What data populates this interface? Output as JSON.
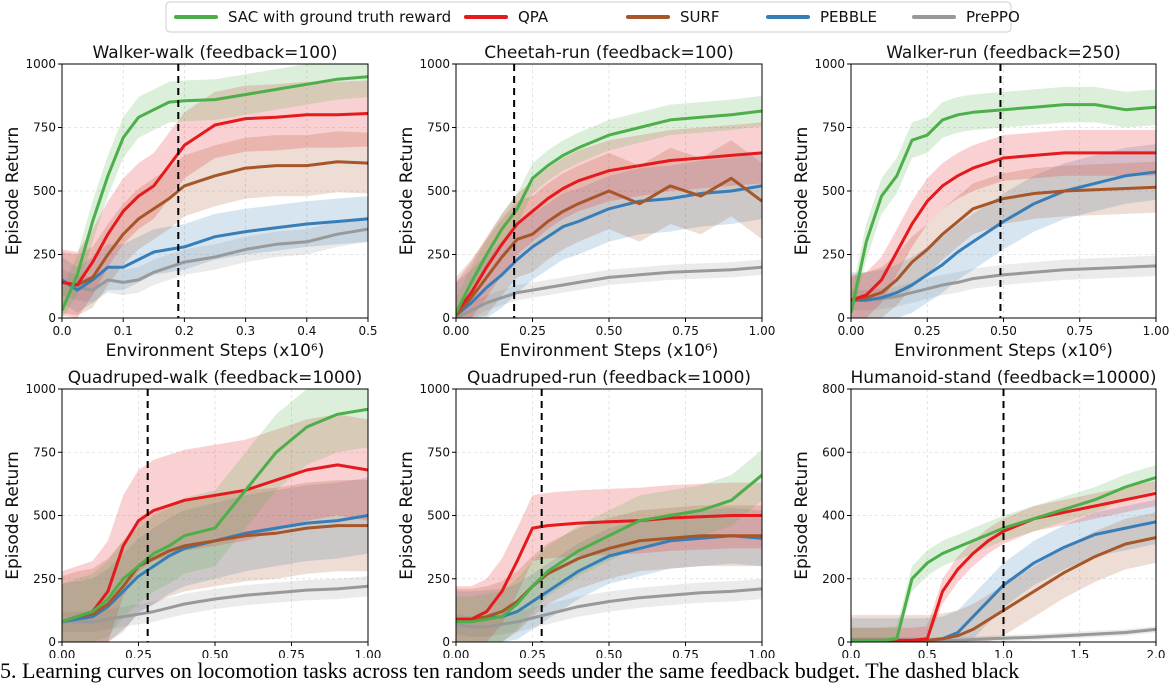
{
  "legend": [
    {
      "name": "SAC with ground truth reward",
      "color": "#4daf4a"
    },
    {
      "name": "QPA",
      "color": "#e41a1c"
    },
    {
      "name": "SURF",
      "color": "#a65628"
    },
    {
      "name": "PEBBLE",
      "color": "#377eb8"
    },
    {
      "name": "PrePPO",
      "color": "#999999"
    }
  ],
  "caption": {
    "text": "5. Learning curves on locomotion tasks across ten random seeds under the same feedback budget. The dashed black"
  },
  "chart_data": [
    {
      "type": "line",
      "title": "Walker-walk (feedback=100)",
      "xlabel": "Environment Steps (x10⁶)",
      "ylabel": "Episode Return",
      "xlim": [
        0,
        0.5
      ],
      "ylim": [
        0,
        1000
      ],
      "xticks": [
        0,
        0.1,
        0.2,
        0.3,
        0.4,
        0.5
      ],
      "xtick_labels": [
        "0.0",
        "0.1",
        "0.2",
        "0.3",
        "0.4",
        "0.5"
      ],
      "yticks": [
        0,
        250,
        500,
        750,
        1000
      ],
      "ytick_labels": [
        "0",
        "250",
        "500",
        "750",
        "1000"
      ],
      "vline": 0.19,
      "grid": true,
      "x": [
        0,
        0.025,
        0.05,
        0.075,
        0.1,
        0.125,
        0.15,
        0.175,
        0.2,
        0.25,
        0.3,
        0.35,
        0.4,
        0.45,
        0.5
      ],
      "series": [
        {
          "name": "SAC with ground truth reward",
          "values": [
            30,
            170,
            380,
            560,
            710,
            790,
            820,
            850,
            855,
            860,
            880,
            900,
            920,
            940,
            950
          ],
          "band": 80
        },
        {
          "name": "QPA",
          "values": [
            140,
            130,
            220,
            330,
            420,
            480,
            520,
            600,
            680,
            760,
            785,
            790,
            800,
            800,
            805
          ],
          "band": 130
        },
        {
          "name": "SURF",
          "values": [
            140,
            130,
            160,
            250,
            330,
            390,
            430,
            470,
            520,
            560,
            590,
            600,
            600,
            615,
            610
          ],
          "band": 120
        },
        {
          "name": "PEBBLE",
          "values": [
            150,
            110,
            150,
            200,
            200,
            230,
            260,
            270,
            280,
            320,
            340,
            355,
            370,
            380,
            390
          ],
          "band": 90
        },
        {
          "name": "PrePPO",
          "values": [
            140,
            120,
            110,
            150,
            140,
            150,
            180,
            200,
            220,
            240,
            270,
            290,
            300,
            330,
            350
          ],
          "band": 50
        }
      ]
    },
    {
      "type": "line",
      "title": "Cheetah-run (feedback=100)",
      "xlabel": "Environment Steps (x10⁶)",
      "ylabel": "Episode Return",
      "xlim": [
        0,
        1
      ],
      "ylim": [
        0,
        1000
      ],
      "xticks": [
        0,
        0.25,
        0.5,
        0.75,
        1
      ],
      "xtick_labels": [
        "0.00",
        "0.25",
        "0.50",
        "0.75",
        "1.00"
      ],
      "yticks": [
        0,
        250,
        500,
        750,
        1000
      ],
      "ytick_labels": [
        "0",
        "250",
        "500",
        "750",
        "1000"
      ],
      "vline": 0.19,
      "grid": true,
      "x": [
        0,
        0.05,
        0.1,
        0.15,
        0.2,
        0.25,
        0.3,
        0.35,
        0.4,
        0.5,
        0.6,
        0.7,
        0.8,
        0.9,
        1.0
      ],
      "series": [
        {
          "name": "SAC with ground truth reward",
          "values": [
            20,
            140,
            250,
            350,
            430,
            550,
            600,
            640,
            670,
            720,
            750,
            780,
            790,
            800,
            815
          ],
          "band": 60
        },
        {
          "name": "QPA",
          "values": [
            20,
            100,
            200,
            290,
            370,
            420,
            470,
            510,
            540,
            580,
            600,
            620,
            630,
            640,
            650
          ],
          "band": 120
        },
        {
          "name": "SURF",
          "values": [
            10,
            80,
            160,
            240,
            310,
            330,
            380,
            420,
            450,
            500,
            450,
            520,
            480,
            550,
            460
          ],
          "band": 150
        },
        {
          "name": "PEBBLE",
          "values": [
            10,
            60,
            120,
            170,
            230,
            280,
            320,
            360,
            380,
            430,
            460,
            470,
            490,
            500,
            520
          ],
          "band": 130
        },
        {
          "name": "PrePPO",
          "values": [
            0,
            30,
            60,
            80,
            100,
            110,
            120,
            130,
            140,
            160,
            170,
            180,
            185,
            190,
            200
          ],
          "band": 30
        }
      ]
    },
    {
      "type": "line",
      "title": "Walker-run (feedback=250)",
      "xlabel": "Environment Steps (x10⁶)",
      "ylabel": "Episode Return",
      "xlim": [
        0,
        1
      ],
      "ylim": [
        0,
        1000
      ],
      "xticks": [
        0,
        0.25,
        0.5,
        0.75,
        1
      ],
      "xtick_labels": [
        "0.00",
        "0.25",
        "0.50",
        "0.75",
        "1.00"
      ],
      "yticks": [
        0,
        250,
        500,
        750,
        1000
      ],
      "ytick_labels": [
        "0",
        "250",
        "500",
        "750",
        "1000"
      ],
      "vline": 0.49,
      "grid": true,
      "x": [
        0,
        0.05,
        0.1,
        0.15,
        0.2,
        0.25,
        0.3,
        0.35,
        0.4,
        0.5,
        0.6,
        0.7,
        0.8,
        0.9,
        1.0
      ],
      "series": [
        {
          "name": "SAC with ground truth reward",
          "values": [
            20,
            300,
            480,
            560,
            700,
            720,
            780,
            800,
            810,
            820,
            830,
            840,
            840,
            820,
            830
          ],
          "band": 70
        },
        {
          "name": "QPA",
          "values": [
            70,
            90,
            150,
            260,
            370,
            460,
            520,
            560,
            590,
            630,
            640,
            650,
            650,
            650,
            650
          ],
          "band": 90
        },
        {
          "name": "SURF",
          "values": [
            70,
            80,
            100,
            150,
            220,
            270,
            330,
            380,
            430,
            470,
            490,
            500,
            505,
            510,
            515
          ],
          "band": 100
        },
        {
          "name": "PEBBLE",
          "values": [
            70,
            70,
            80,
            100,
            130,
            170,
            210,
            260,
            300,
            380,
            450,
            500,
            530,
            560,
            575
          ],
          "band": 110
        },
        {
          "name": "PrePPO",
          "values": [
            70,
            70,
            75,
            85,
            100,
            115,
            130,
            140,
            155,
            170,
            180,
            190,
            195,
            200,
            205
          ],
          "band": 40
        }
      ]
    },
    {
      "type": "line",
      "title": "Quadruped-walk (feedback=1000)",
      "xlabel": "Environment Steps (x10⁶)",
      "ylabel": "Episode Return",
      "xlim": [
        0,
        1
      ],
      "ylim": [
        0,
        1000
      ],
      "xticks": [
        0,
        0.25,
        0.5,
        0.75,
        1
      ],
      "xtick_labels": [
        "0.00",
        "0.25",
        "0.50",
        "0.75",
        "1.00"
      ],
      "yticks": [
        0,
        250,
        500,
        750,
        1000
      ],
      "ytick_labels": [
        "0",
        "250",
        "500",
        "750",
        "1000"
      ],
      "vline": 0.28,
      "grid": true,
      "x": [
        0,
        0.05,
        0.1,
        0.15,
        0.2,
        0.25,
        0.3,
        0.35,
        0.4,
        0.5,
        0.6,
        0.7,
        0.8,
        0.9,
        1.0
      ],
      "series": [
        {
          "name": "SAC with ground truth reward",
          "values": [
            80,
            100,
            120,
            170,
            250,
            300,
            350,
            380,
            420,
            450,
            600,
            750,
            850,
            900,
            920
          ],
          "band": 150
        },
        {
          "name": "QPA",
          "values": [
            80,
            100,
            120,
            200,
            380,
            480,
            520,
            540,
            560,
            580,
            600,
            640,
            680,
            700,
            680
          ],
          "band": 200
        },
        {
          "name": "SURF",
          "values": [
            80,
            100,
            110,
            150,
            220,
            300,
            330,
            360,
            380,
            400,
            420,
            430,
            450,
            460,
            460
          ],
          "band": 180
        },
        {
          "name": "PEBBLE",
          "values": [
            80,
            90,
            100,
            140,
            200,
            260,
            300,
            340,
            370,
            400,
            430,
            450,
            470,
            480,
            500
          ],
          "band": 150
        },
        {
          "name": "PrePPO",
          "values": [
            80,
            80,
            80,
            90,
            100,
            110,
            120,
            135,
            150,
            170,
            185,
            195,
            205,
            210,
            220
          ],
          "band": 40
        }
      ]
    },
    {
      "type": "line",
      "title": "Quadruped-run (feedback=1000)",
      "xlabel": "Environment Steps (x10⁶)",
      "ylabel": "Episode Return",
      "xlim": [
        0,
        1
      ],
      "ylim": [
        0,
        1000
      ],
      "xticks": [
        0,
        0.25,
        0.5,
        0.75,
        1
      ],
      "xtick_labels": [
        "0.00",
        "0.25",
        "0.50",
        "0.75",
        "1.00"
      ],
      "yticks": [
        0,
        250,
        500,
        750,
        1000
      ],
      "ytick_labels": [
        "0",
        "250",
        "500",
        "750",
        "1000"
      ],
      "vline": 0.28,
      "grid": true,
      "x": [
        0,
        0.05,
        0.1,
        0.15,
        0.2,
        0.25,
        0.3,
        0.35,
        0.4,
        0.5,
        0.6,
        0.7,
        0.8,
        0.9,
        1.0
      ],
      "series": [
        {
          "name": "SAC with ground truth reward",
          "values": [
            80,
            80,
            90,
            100,
            150,
            220,
            280,
            320,
            360,
            420,
            480,
            500,
            520,
            560,
            660
          ],
          "band": 100
        },
        {
          "name": "QPA",
          "values": [
            90,
            90,
            120,
            200,
            320,
            450,
            460,
            465,
            470,
            475,
            480,
            490,
            495,
            500,
            500
          ],
          "band": 130
        },
        {
          "name": "SURF",
          "values": [
            90,
            90,
            100,
            120,
            160,
            220,
            270,
            300,
            330,
            370,
            400,
            410,
            420,
            420,
            420
          ],
          "band": 120
        },
        {
          "name": "PEBBLE",
          "values": [
            90,
            90,
            95,
            100,
            120,
            160,
            200,
            240,
            280,
            340,
            370,
            400,
            410,
            420,
            410
          ],
          "band": 110
        },
        {
          "name": "PrePPO",
          "values": [
            70,
            60,
            60,
            70,
            80,
            95,
            110,
            125,
            140,
            160,
            175,
            185,
            195,
            200,
            210
          ],
          "band": 40
        }
      ]
    },
    {
      "type": "line",
      "title": "Humanoid-stand (feedback=10000)",
      "xlabel": "Environment Steps (x10⁶)",
      "ylabel": "Episode Return",
      "xlim": [
        0,
        2
      ],
      "ylim": [
        0,
        800
      ],
      "xticks": [
        0,
        0.5,
        1,
        1.5,
        2
      ],
      "xtick_labels": [
        "0.0",
        "0.5",
        "1.0",
        "1.5",
        "2.0"
      ],
      "yticks": [
        0,
        200,
        400,
        600,
        800
      ],
      "ytick_labels": [
        "0",
        "200",
        "400",
        "600",
        "800"
      ],
      "vline": 1.0,
      "grid": true,
      "x": [
        0,
        0.2,
        0.3,
        0.4,
        0.5,
        0.6,
        0.7,
        0.8,
        0.9,
        1.0,
        1.2,
        1.4,
        1.6,
        1.8,
        2.0
      ],
      "series": [
        {
          "name": "SAC with ground truth reward",
          "values": [
            5,
            5,
            10,
            200,
            250,
            280,
            300,
            320,
            340,
            360,
            390,
            420,
            450,
            490,
            520
          ],
          "band": 40
        },
        {
          "name": "QPA",
          "values": [
            5,
            5,
            5,
            5,
            10,
            160,
            230,
            280,
            320,
            350,
            390,
            410,
            430,
            450,
            470
          ],
          "band": 40
        },
        {
          "name": "SURF",
          "values": [
            5,
            5,
            5,
            5,
            5,
            10,
            20,
            40,
            70,
            100,
            160,
            220,
            270,
            310,
            330
          ],
          "band": 80
        },
        {
          "name": "PEBBLE",
          "values": [
            5,
            5,
            5,
            5,
            5,
            10,
            30,
            80,
            130,
            180,
            250,
            300,
            340,
            360,
            380
          ],
          "band": 70
        },
        {
          "name": "PrePPO",
          "values": [
            5,
            5,
            5,
            5,
            5,
            5,
            5,
            8,
            10,
            12,
            15,
            20,
            25,
            30,
            40
          ],
          "band": 10
        }
      ]
    }
  ]
}
